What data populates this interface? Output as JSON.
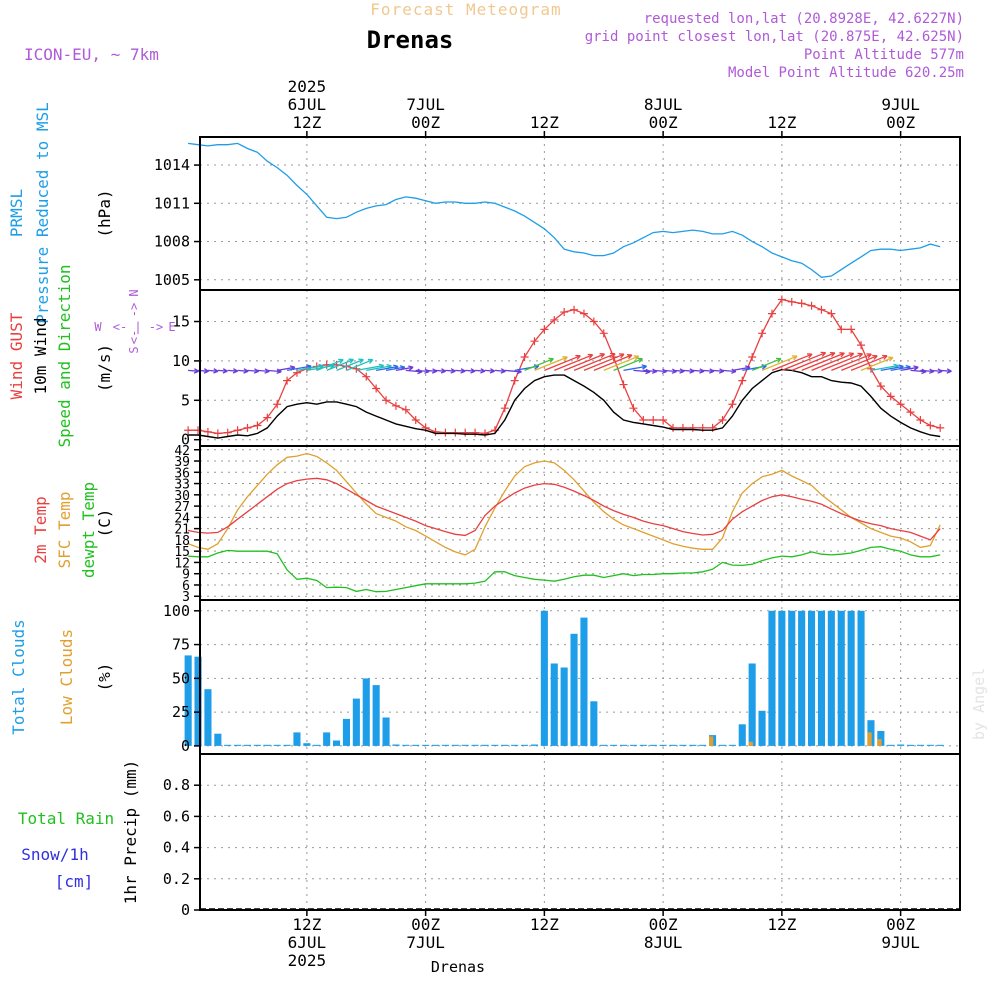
{
  "header": {
    "subtitle": "Forecast Meteogram",
    "title": "Drenas",
    "model": "ICON-EU, ~ 7km",
    "requested": "requested lon,lat (20.8928E, 42.6227N)",
    "grid_point": "grid point closest lon,lat (20.875E, 42.625N)",
    "point_altitude": "Point Altitude 577m",
    "model_altitude": "Model Point Altitude 620.25m",
    "footer_location": "Drenas",
    "watermark": "by Angel"
  },
  "time_axis": {
    "top_labels": [
      {
        "line1": "2025",
        "line2": "6JUL",
        "line3": "12Z",
        "hour": 12
      },
      {
        "line1": "",
        "line2": "7JUL",
        "line3": "00Z",
        "hour": 24
      },
      {
        "line1": "",
        "line2": "",
        "line3": "12Z",
        "hour": 36
      },
      {
        "line1": "",
        "line2": "8JUL",
        "line3": "00Z",
        "hour": 48
      },
      {
        "line1": "",
        "line2": "",
        "line3": "12Z",
        "hour": 60
      },
      {
        "line1": "",
        "line2": "9JUL",
        "line3": "00Z",
        "hour": 72
      }
    ],
    "bottom_labels": [
      {
        "line1": "12Z",
        "line2": "6JUL",
        "line3": "2025",
        "hour": 12
      },
      {
        "line1": "00Z",
        "line2": "7JUL",
        "line3": "",
        "hour": 24
      },
      {
        "line1": "12Z",
        "line2": "",
        "line3": "",
        "hour": 36
      },
      {
        "line1": "00Z",
        "line2": "8JUL",
        "line3": "",
        "hour": 48
      },
      {
        "line1": "12Z",
        "line2": "",
        "line3": "",
        "hour": 60
      },
      {
        "line1": "00Z",
        "line2": "9JUL",
        "line3": "",
        "hour": 72
      }
    ]
  },
  "colors": {
    "pressure": "#1e9ee8",
    "gust": "#e84040",
    "wind": "#000000",
    "t2m": "#e84040",
    "sfc": "#e0a030",
    "dewpt": "#20c020",
    "total_clouds": "#1e9ee8",
    "low_clouds": "#e0a030",
    "rain": "#20c020",
    "snow": "#3030e0",
    "header_purple": "#b05ad8",
    "subtitle": "#f0c890"
  },
  "chart_data": [
    {
      "id": "pressure",
      "type": "line",
      "ylabels": [
        "PRMSL",
        "Pressure Reduced to MSL"
      ],
      "unit": "(hPa)",
      "ylim": [
        1004.2,
        1016.2
      ],
      "yticks": [
        1005,
        1008,
        1011,
        1014
      ],
      "x_hours": [
        0,
        1,
        2,
        3,
        4,
        5,
        6,
        7,
        8,
        9,
        10,
        11,
        12,
        13,
        14,
        15,
        16,
        17,
        18,
        19,
        20,
        21,
        22,
        23,
        24,
        25,
        26,
        27,
        28,
        29,
        30,
        31,
        32,
        33,
        34,
        35,
        36,
        37,
        38,
        39,
        40,
        41,
        42,
        43,
        44,
        45,
        46,
        47,
        48,
        49,
        50,
        51,
        52,
        53,
        54,
        55,
        56,
        57,
        58,
        59,
        60,
        61,
        62,
        63,
        64,
        65,
        66,
        67,
        68,
        69,
        70,
        71,
        72,
        73,
        74,
        75,
        76
      ],
      "series": [
        {
          "values": [
            1015.7,
            1015.6,
            1015.5,
            1015.6,
            1015.6,
            1015.7,
            1015.3,
            1015.0,
            1014.3,
            1013.8,
            1013.2,
            1012.4,
            1011.7,
            1010.8,
            1009.9,
            1009.8,
            1009.9,
            1010.3,
            1010.6,
            1010.8,
            1010.9,
            1011.3,
            1011.5,
            1011.4,
            1011.2,
            1011.0,
            1011.1,
            1011.1,
            1011.0,
            1011.0,
            1011.1,
            1011.0,
            1010.7,
            1010.4,
            1010.0,
            1009.5,
            1009.0,
            1008.3,
            1007.4,
            1007.2,
            1007.1,
            1006.9,
            1006.9,
            1007.1,
            1007.6,
            1007.9,
            1008.3,
            1008.7,
            1008.8,
            1008.7,
            1008.8,
            1008.9,
            1008.8,
            1008.6,
            1008.6,
            1008.8,
            1008.5,
            1008.0,
            1007.6,
            1007.1,
            1006.8,
            1006.5,
            1006.3,
            1005.8,
            1005.2,
            1005.3,
            1005.8,
            1006.3,
            1006.8,
            1007.3,
            1007.4,
            1007.4,
            1007.3,
            1007.4,
            1007.5,
            1007.8,
            1007.6
          ]
        }
      ]
    },
    {
      "id": "wind",
      "type": "line",
      "ylabels": [
        "Wind GUST",
        "10m Wind",
        "Speed and Direction"
      ],
      "unit": "(m/s)",
      "ylim": [
        -0.8,
        19
      ],
      "yticks": [
        0,
        5,
        10,
        15
      ],
      "compass_legend": {
        "n": "N",
        "s": "S",
        "w": "W",
        "e": "E",
        "left_arrow": "<-",
        "right_arrow": "->",
        "bar": "|"
      },
      "x_hours": [
        0,
        1,
        2,
        3,
        4,
        5,
        6,
        7,
        8,
        9,
        10,
        11,
        12,
        13,
        14,
        15,
        16,
        17,
        18,
        19,
        20,
        21,
        22,
        23,
        24,
        25,
        26,
        27,
        28,
        29,
        30,
        31,
        32,
        33,
        34,
        35,
        36,
        37,
        38,
        39,
        40,
        41,
        42,
        43,
        44,
        45,
        46,
        47,
        48,
        49,
        50,
        51,
        52,
        53,
        54,
        55,
        56,
        57,
        58,
        59,
        60,
        61,
        62,
        63,
        64,
        65,
        66,
        67,
        68,
        69,
        70,
        71,
        72,
        73,
        74,
        75,
        76
      ],
      "series": [
        {
          "name": "Wind GUST",
          "values": [
            1.2,
            1.2,
            1.0,
            0.8,
            0.9,
            1.2,
            1.5,
            1.8,
            2.8,
            4.5,
            7.5,
            8.5,
            9.0,
            9.3,
            9.5,
            9.5,
            9.3,
            9.0,
            8.0,
            6.5,
            5.0,
            4.3,
            3.8,
            2.5,
            1.5,
            1.0,
            0.9,
            0.9,
            0.9,
            0.9,
            0.8,
            1.2,
            4.0,
            7.5,
            10.5,
            12.5,
            14.0,
            15.2,
            16.2,
            16.5,
            16.0,
            15.0,
            13.5,
            10.5,
            7.0,
            4.0,
            2.5,
            2.5,
            2.5,
            1.5,
            1.5,
            1.5,
            1.5,
            1.5,
            2.5,
            4.5,
            7.5,
            10.5,
            13.5,
            16.0,
            17.8,
            17.5,
            17.3,
            17.0,
            16.5,
            16.0,
            14.0,
            14.0,
            12.0,
            9.0,
            6.8,
            5.5,
            4.5,
            3.5,
            2.5,
            1.8,
            1.5
          ]
        },
        {
          "name": "10m Wind",
          "values": [
            0.6,
            0.6,
            0.4,
            0.2,
            0.4,
            0.6,
            0.5,
            0.8,
            1.5,
            3.0,
            4.2,
            4.5,
            4.7,
            4.5,
            4.8,
            4.8,
            4.5,
            4.2,
            3.5,
            3.0,
            2.5,
            2.0,
            1.7,
            1.4,
            1.2,
            0.8,
            0.8,
            0.8,
            0.7,
            0.7,
            0.6,
            0.8,
            2.5,
            5.0,
            6.5,
            7.5,
            8.0,
            8.2,
            8.2,
            7.5,
            6.8,
            6.0,
            5.0,
            3.5,
            2.5,
            2.2,
            2.0,
            1.8,
            1.6,
            1.3,
            1.3,
            1.3,
            1.2,
            1.2,
            1.5,
            3.0,
            5.0,
            6.5,
            7.5,
            8.5,
            8.9,
            8.8,
            8.5,
            8.0,
            8.0,
            7.5,
            7.3,
            7.2,
            6.8,
            5.5,
            4.0,
            3.0,
            2.2,
            1.5,
            1.0,
            0.6,
            0.4
          ]
        }
      ]
    },
    {
      "id": "temperature",
      "type": "line",
      "ylabels": [
        "2m Temp",
        "SFC Temp",
        "dewpt Temp"
      ],
      "unit": "(C)",
      "ylim": [
        2,
        43
      ],
      "yticks": [
        3,
        6,
        9,
        12,
        15,
        18,
        21,
        24,
        27,
        30,
        33,
        36,
        39,
        42
      ],
      "x_hours": [
        0,
        1,
        2,
        3,
        4,
        5,
        6,
        7,
        8,
        9,
        10,
        11,
        12,
        13,
        14,
        15,
        16,
        17,
        18,
        19,
        20,
        21,
        22,
        23,
        24,
        25,
        26,
        27,
        28,
        29,
        30,
        31,
        32,
        33,
        34,
        35,
        36,
        37,
        38,
        39,
        40,
        41,
        42,
        43,
        44,
        45,
        46,
        47,
        48,
        49,
        50,
        51,
        52,
        53,
        54,
        55,
        56,
        57,
        58,
        59,
        60,
        61,
        62,
        63,
        64,
        65,
        66,
        67,
        68,
        69,
        70,
        71,
        72,
        73,
        74,
        75,
        76
      ],
      "series": [
        {
          "name": "2m Temp",
          "values": [
            20.5,
            20.0,
            19.8,
            20.0,
            21.5,
            23.5,
            25.5,
            27.5,
            29.5,
            31.5,
            33.0,
            33.8,
            34.2,
            34.4,
            34.0,
            33.0,
            31.5,
            30.0,
            28.5,
            27.0,
            26.0,
            25.0,
            24.0,
            23.0,
            21.8,
            21.0,
            20.2,
            19.5,
            19.2,
            20.5,
            24.5,
            27.0,
            28.8,
            30.5,
            31.8,
            32.6,
            33.0,
            32.8,
            32.0,
            31.0,
            29.8,
            28.5,
            27.0,
            25.8,
            24.8,
            24.0,
            23.0,
            22.3,
            21.8,
            21.0,
            20.2,
            19.7,
            19.3,
            19.5,
            20.5,
            23.5,
            25.5,
            27.0,
            28.5,
            29.5,
            30.0,
            29.5,
            28.8,
            28.3,
            27.5,
            26.2,
            25.0,
            24.0,
            23.0,
            22.3,
            21.8,
            21.0,
            20.5,
            20.0,
            19.0,
            18.0,
            21.0
          ]
        },
        {
          "name": "SFC Temp",
          "values": [
            17.0,
            16.0,
            15.5,
            17.0,
            21.0,
            26.0,
            29.5,
            32.5,
            35.5,
            38.0,
            40.0,
            40.3,
            41.0,
            40.2,
            38.5,
            36.5,
            33.5,
            30.5,
            27.5,
            25.0,
            24.0,
            23.0,
            21.5,
            20.5,
            19.0,
            17.5,
            16.0,
            14.8,
            14.0,
            15.5,
            21.5,
            26.5,
            31.0,
            35.0,
            37.5,
            38.5,
            39.0,
            38.5,
            36.5,
            34.0,
            31.0,
            28.0,
            25.5,
            23.5,
            22.0,
            21.0,
            20.0,
            19.0,
            18.0,
            17.0,
            16.3,
            15.8,
            15.5,
            15.5,
            18.5,
            25.5,
            30.5,
            33.0,
            34.8,
            35.5,
            36.5,
            35.0,
            33.8,
            32.5,
            30.0,
            28.0,
            26.0,
            24.0,
            22.5,
            21.0,
            20.0,
            19.0,
            18.5,
            17.5,
            16.0,
            16.5,
            22.0
          ]
        },
        {
          "name": "dewpt Temp",
          "values": [
            13.7,
            13.5,
            13.5,
            14.5,
            15.2,
            15.0,
            15.0,
            15.0,
            15.0,
            14.3,
            10.0,
            7.5,
            7.8,
            7.2,
            5.3,
            5.4,
            5.3,
            4.3,
            4.8,
            4.2,
            4.3,
            4.8,
            5.3,
            5.8,
            6.3,
            6.3,
            6.3,
            6.3,
            6.3,
            6.5,
            7.0,
            9.5,
            9.5,
            8.5,
            8.0,
            7.5,
            7.3,
            7.0,
            7.5,
            8.2,
            8.6,
            8.6,
            8.0,
            8.5,
            9.0,
            8.5,
            8.8,
            8.8,
            9.0,
            9.0,
            9.2,
            9.2,
            9.5,
            10.2,
            12.0,
            11.3,
            11.2,
            11.5,
            12.5,
            13.2,
            13.7,
            13.5,
            14.0,
            14.8,
            14.2,
            14.0,
            14.2,
            14.5,
            15.2,
            16.0,
            16.2,
            15.5,
            15.0,
            14.0,
            13.5,
            13.5,
            14.0
          ]
        }
      ]
    },
    {
      "id": "clouds",
      "type": "bar",
      "ylabels": [
        "Total Clouds",
        "Low Clouds"
      ],
      "unit": "(%)",
      "ylim": [
        -6,
        108
      ],
      "yticks": [
        0,
        25,
        50,
        75,
        100
      ],
      "x_hours": [
        0,
        1,
        2,
        3,
        4,
        5,
        6,
        7,
        8,
        9,
        10,
        11,
        12,
        13,
        14,
        15,
        16,
        17,
        18,
        19,
        20,
        21,
        22,
        23,
        24,
        25,
        26,
        27,
        28,
        29,
        30,
        31,
        32,
        33,
        34,
        35,
        36,
        37,
        38,
        39,
        40,
        41,
        42,
        43,
        44,
        45,
        46,
        47,
        48,
        49,
        50,
        51,
        52,
        53,
        54,
        55,
        56,
        57,
        58,
        59,
        60,
        61,
        62,
        63,
        64,
        65,
        66,
        67,
        68,
        69,
        70,
        71,
        72,
        73,
        74,
        75,
        76
      ],
      "series": [
        {
          "name": "Total Clouds",
          "values": [
            67,
            66,
            42,
            9,
            0,
            0,
            0,
            0,
            0,
            0,
            0,
            10,
            2,
            0,
            10,
            4,
            20,
            35,
            50,
            45,
            21,
            1,
            0,
            0,
            0,
            0,
            0,
            0,
            0,
            0,
            0,
            0,
            0,
            0,
            0,
            1,
            100,
            61,
            58,
            83,
            95,
            33,
            0,
            0,
            0,
            0,
            0,
            0,
            0,
            0,
            0,
            0,
            0,
            8,
            0,
            0,
            16,
            61,
            26,
            100,
            100,
            100,
            100,
            100,
            100,
            100,
            100,
            100,
            100,
            19,
            11,
            0,
            1,
            0,
            0,
            0,
            0
          ]
        },
        {
          "name": "Low Clouds",
          "values": [
            0,
            0,
            0,
            0,
            0,
            0,
            0,
            0,
            0,
            0,
            0,
            0,
            0,
            0,
            0,
            0,
            0,
            0,
            0,
            0,
            0,
            0,
            0,
            0,
            0,
            0,
            0,
            0,
            0,
            0,
            0,
            0,
            0,
            0,
            0,
            0,
            0,
            0,
            0,
            0,
            0,
            0,
            0,
            0,
            0,
            0,
            0,
            0,
            0,
            0,
            0,
            0,
            0,
            7,
            0,
            0,
            0,
            3,
            0,
            0,
            0,
            0,
            0,
            0,
            0,
            0,
            0,
            0,
            0,
            10,
            5,
            0,
            0,
            0,
            0,
            0,
            0
          ]
        }
      ]
    },
    {
      "id": "precip",
      "type": "bar",
      "ylabels": [
        "Total  Rain",
        "Snow/1h",
        "[cm]"
      ],
      "unit": "1hr Precip (mm)",
      "ylim": [
        0,
        1
      ],
      "yticks": [
        0,
        0.2,
        0.4,
        0.6,
        0.8
      ],
      "series": [
        {
          "name": "Total  Rain",
          "values": []
        },
        {
          "name": "Snow/1h",
          "values": []
        }
      ]
    }
  ]
}
